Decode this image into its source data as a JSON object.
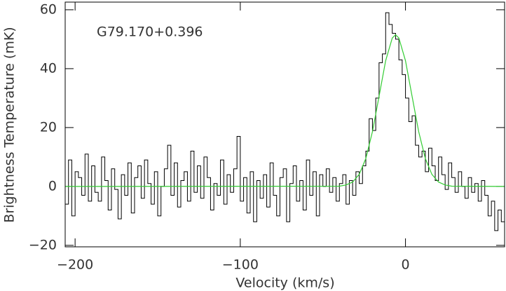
{
  "chart_data": {
    "type": "step",
    "annotation": "G79.170+0.396",
    "xlabel": "Velocity (km/s)",
    "ylabel": "Brightness Temperature (mK)",
    "xlim": [
      -206,
      60
    ],
    "ylim": [
      -20.5,
      62.6
    ],
    "xticks": [
      {
        "value": -200,
        "label": "−200"
      },
      {
        "value": -100,
        "label": "−100"
      },
      0
    ],
    "yticks": [
      {
        "value": -20,
        "label": "−20"
      },
      0,
      20,
      40,
      60
    ],
    "series": [
      {
        "name": "spectrum",
        "color": "#000000",
        "x": [
          -205,
          -203,
          -201,
          -199,
          -197,
          -195,
          -193,
          -191,
          -189,
          -187,
          -185,
          -183,
          -181,
          -179,
          -177,
          -175,
          -173,
          -171,
          -169,
          -167,
          -165,
          -163,
          -161,
          -159,
          -157,
          -155,
          -153,
          -151,
          -149,
          -147,
          -145,
          -143,
          -141,
          -139,
          -137,
          -135,
          -133,
          -131,
          -129,
          -127,
          -125,
          -123,
          -121,
          -119,
          -117,
          -115,
          -113,
          -111,
          -109,
          -107,
          -105,
          -103,
          -101,
          -99,
          -97,
          -95,
          -93,
          -91,
          -89,
          -87,
          -85,
          -83,
          -81,
          -79,
          -77,
          -75,
          -73,
          -71,
          -69,
          -67,
          -65,
          -63,
          -61,
          -59,
          -57,
          -55,
          -53,
          -51,
          -49,
          -47,
          -45,
          -43,
          -41,
          -39,
          -37,
          -35,
          -33,
          -31,
          -29,
          -27,
          -25,
          -23,
          -21,
          -19,
          -17,
          -15,
          -13,
          -11,
          -9,
          -7,
          -5,
          -3,
          -1,
          1,
          3,
          5,
          7,
          9,
          11,
          13,
          15,
          17,
          19,
          21,
          23,
          25,
          27,
          29,
          31,
          33,
          35,
          37,
          39,
          41,
          43,
          45,
          47,
          49,
          51,
          53,
          55,
          57,
          59
        ],
        "values": [
          -6,
          9,
          -10,
          5,
          3,
          -3,
          11,
          -5,
          7,
          -2,
          -5,
          10,
          2,
          -8,
          6,
          -1,
          -11,
          4,
          -3,
          8,
          -9,
          3,
          7,
          -4,
          9,
          1,
          -6,
          5,
          -10,
          0,
          6,
          14,
          -3,
          8,
          -7,
          2,
          5,
          -5,
          12,
          -2,
          7,
          -4,
          10,
          3,
          -8,
          1,
          -3,
          9,
          -6,
          4,
          -2,
          6,
          17,
          -5,
          3,
          -9,
          5,
          -12,
          2,
          -4,
          4,
          -7,
          8,
          -3,
          -10,
          3,
          6,
          -12,
          1,
          7,
          -5,
          2,
          -8,
          9,
          -3,
          5,
          -10,
          4,
          0,
          6,
          -2,
          3,
          -5,
          1,
          4,
          -6,
          2,
          -3,
          5,
          1,
          7,
          12,
          23,
          19,
          30,
          42,
          45,
          59,
          55,
          52,
          50,
          43,
          38,
          30,
          22,
          24,
          14,
          10,
          12,
          5,
          13,
          7,
          2,
          10,
          4,
          -1,
          8,
          3,
          -2,
          5,
          0,
          -4,
          3,
          -2,
          1,
          -5,
          2,
          -3,
          -10,
          -5,
          -15,
          -8,
          -12
        ]
      },
      {
        "name": "fit",
        "color": "#33cc33",
        "x": [
          -206,
          -40,
          -36,
          -32,
          -28,
          -24,
          -20,
          -16,
          -12,
          -8,
          -6,
          -4,
          0,
          4,
          8,
          12,
          16,
          20,
          24,
          28,
          60
        ],
        "values": [
          0,
          0.1,
          0.5,
          1.5,
          4.1,
          9.5,
          18.6,
          30.6,
          42.7,
          50.4,
          51.5,
          50.4,
          42.7,
          30.6,
          18.6,
          9.5,
          4.1,
          1.5,
          0.5,
          0.1,
          0
        ]
      }
    ]
  }
}
